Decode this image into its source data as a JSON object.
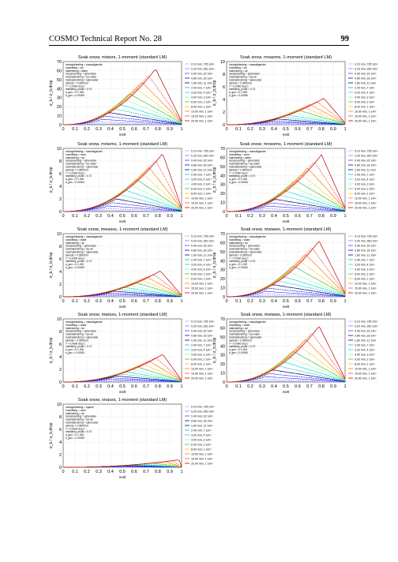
{
  "header": {
    "title": "COSMO Technical Report No. 28",
    "page": "99"
  },
  "axis": {
    "xlabel": "melt",
    "ylabel": "σ_b / σ_b,drop",
    "xticks": [
      "0",
      "0.1",
      "0.2",
      "0.3",
      "0.4",
      "0.5",
      "0.6",
      "0.7",
      "0.8",
      "0.9",
      "1"
    ]
  },
  "legend_entries": [
    "0.10 mm, 735 1/m³",
    "0.20 mm, 260 1/m³",
    "0.40 mm, 92 1/m³",
    "0.80 mm, 33 1/m³",
    "1.60 mm, 11 1/m³",
    "2.40 mm, 7 1/m³",
    "3.20 mm, 4 1/m³",
    "4.00 mm, 3 1/m³",
    "6.00 mm, 2 1/m³",
    "8.00 mm, 1 1/m³",
    "10.00 mm, 1 1/m³",
    "15.00 mm, 1 1/m³",
    "20.00 mm, 1 1/m³"
  ],
  "series_colors": [
    "#b0b0ff",
    "#8080ff",
    "#4040ff",
    "#0000c0",
    "#000080",
    "#00c0c0",
    "#00e0e0",
    "#80ff80",
    "#40c040",
    "#ffc000",
    "#ff8000",
    "#ff4040",
    "#c00000"
  ],
  "panels": [
    {
      "title": "Soak snow, miwsrs, 1-moment (standard LM)",
      "ymax": 70,
      "yticks": [
        "0",
        "10",
        "20",
        "30",
        "40",
        "50",
        "60",
        "70"
      ],
      "peak": 62,
      "peakx": 0.78,
      "params": [
        "mixingbefeating = massaligandet",
        "hostniltiing = ice",
        "matrixstring = water",
        "inclusionstring = spheroidal",
        "hostmatrixstring = ice-water",
        "hostmatrixstring = spheroidal",
        "lambda = 0.05000 m",
        "T = 0.0000 deg C",
        "meltdimly_prude = 0.70",
        "a_geo = 0.1.000",
        "b_geo = 0.00000"
      ]
    },
    {
      "title": "Soak snow, mnasms, 1-moment (standard LM)",
      "ymax": 10,
      "yticks": [
        "0",
        "2",
        "4",
        "6",
        "8",
        "10"
      ],
      "peak": 4.2,
      "peakx": 0.82,
      "params": [
        "mixingbefeating = massaligandet",
        "hostniltiing = ice",
        "matrixstring = air",
        "inclusionstring = spheroidal",
        "hostmatrixstring = ice-air",
        "hostmatrixstring = spheroidal",
        "lambda = 0.05000 m",
        "T = 0.0000 deg C",
        "meltdimly_prude = 0.70",
        "a_geo = 0.1.000",
        "b_geo = 0.00000"
      ]
    },
    {
      "title": "Soak snow, mnisms, 1-moment (standard LM)",
      "ymax": 10,
      "yticks": [
        "0",
        "2",
        "4",
        "6",
        "8",
        "10"
      ],
      "peak": 9.2,
      "peakx": 0.84,
      "params": [
        "mixingbefeating = massaligandet",
        "hostniltiing = none",
        "matrixstring = ice",
        "inclusionstring = spheroidal",
        "hostmatrixstring = ice-water",
        "hostmatrixstring = spheroidal",
        "lambda = 0.05000 m",
        "T = 0.0000 deg C",
        "meltdimly_prude = 0.70",
        "a_geo = 0.1.000",
        "b_geo = 0.00000"
      ]
    },
    {
      "title": "Soak snow, mnwsms, 1-moment (standard LM)",
      "ymax": 70,
      "yticks": [
        "0",
        "10",
        "20",
        "30",
        "40",
        "50",
        "60",
        "70"
      ],
      "peak": 63,
      "peakx": 0.8,
      "params": [
        "mixingbefeating = massaligandet",
        "hostniltiing = none",
        "matrixstring = water",
        "inclusionstring = spheroidal",
        "hostmatrixstring = ice-water",
        "hostmatrixstring = spheroidal",
        "lambda = 0.05000 m",
        "T = 0.0000 deg C",
        "meltdimly_prude = 0.70",
        "a_geo = 0.1.000",
        "b_geo = 0.00000"
      ]
    },
    {
      "title": "Soak snow, mwasss, 1-moment (standard LM)",
      "ymax": 10,
      "yticks": [
        "0",
        "2",
        "4",
        "6",
        "8",
        "10"
      ],
      "peak": 4.1,
      "peakx": 0.82,
      "params": [
        "mixingbefeating = massaligandet",
        "hostniltiing = water",
        "matrixstring = air",
        "inclusionstring = spheroidal",
        "hostmatrixstring = ice-air",
        "hostmatrixstring = spheroidal",
        "lambda = 0.05000 m",
        "T = 0.0000 deg C",
        "meltdimly_prude = 0.70",
        "a_geo = 0.1.000",
        "b_geo = 0.00000"
      ]
    },
    {
      "title": "Soak snow, mwiaws, 1-moment (standard LM)",
      "ymax": 70,
      "yticks": [
        "0",
        "10",
        "20",
        "30",
        "40",
        "50",
        "60",
        "70"
      ],
      "peak": 62,
      "peakx": 0.78,
      "params": [
        "mixingbefeating = massaligandet",
        "hostniltiing = water",
        "matrixstring = air",
        "inclusionstring = spheroidal",
        "hostmatrixstring = ice-water",
        "hostmatrixstring = spheroidal",
        "lambda = 0.05000 m",
        "T = 0.0000 deg C",
        "meltdimly_prude = 0.70",
        "a_geo = 0.1.000",
        "b_geo = 0.00000"
      ]
    },
    {
      "title": "Soak snow, mwisss, 1-moment (standard LM)",
      "ymax": 10,
      "yticks": [
        "0",
        "2",
        "4",
        "6",
        "8",
        "10"
      ],
      "peak": 4.4,
      "peakx": 0.84,
      "params": [
        "mixingbefeating = massaligandet",
        "hostniltiing = water",
        "matrixstring = ice",
        "inclusionstring = spheroidal",
        "hostmatrixstring = ice-air",
        "hostmatrixstring = spheroidal",
        "lambda = 0.05000 m",
        "T = 0.0000 deg C",
        "meltdimly_prude = 0.70",
        "a_geo = 0.1.000",
        "b_geo = 0.00000"
      ]
    },
    {
      "title": "Soak snow, mwiaws, 1-moment (standard LM)",
      "ymax": 70,
      "yticks": [
        "0",
        "10",
        "20",
        "30",
        "40",
        "50",
        "60",
        "70"
      ],
      "peak": 62,
      "peakx": 0.78,
      "params": [
        "mixingbefeating = massaligandet",
        "hostniltiing = water",
        "matrixstring = air",
        "inclusionstring = spheroidal",
        "hostmatrixstring = ice-water",
        "hostmatrixstring = spheroidal",
        "lambda = 0.05000 m",
        "T = 0.0000 deg C",
        "meltdimly_prude = 0.70",
        "a_geo = 0.1.000",
        "b_geo = 0.00000"
      ]
    },
    {
      "title": "Soak snow, onasss, 1-moment (standard LM)",
      "ymax": 10,
      "yticks": [
        "0",
        "2",
        "4",
        "6",
        "8",
        "10"
      ],
      "peak": 1.2,
      "peakx": 0.98,
      "params": [
        "mixingbefeating = bgasrit",
        "hostniltiing = none",
        "matrixstring = air",
        "inclusionstring = spheroidal",
        "hostmatrixstring = ice-air",
        "hostmatrixstring = spheroidal",
        "lambda = 0.05000 m",
        "T = 0.0000 deg C",
        "meltdimly_prude = 0.70",
        "a_geo = 0.1.000",
        "b_geo = 0.00000"
      ]
    }
  ]
}
